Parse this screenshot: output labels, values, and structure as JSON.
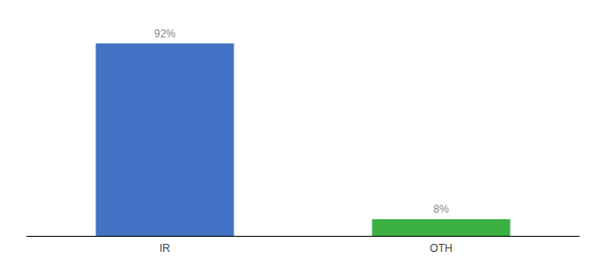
{
  "chart_data": {
    "type": "bar",
    "categories": [
      "IR",
      "OTH"
    ],
    "values": [
      92,
      8
    ],
    "value_labels": [
      "92%",
      "8%"
    ],
    "colors": [
      "#4472c4",
      "#3cb043"
    ],
    "ylim": [
      0,
      100
    ],
    "data_labels": true,
    "tick_labels": "x",
    "grid": false
  }
}
